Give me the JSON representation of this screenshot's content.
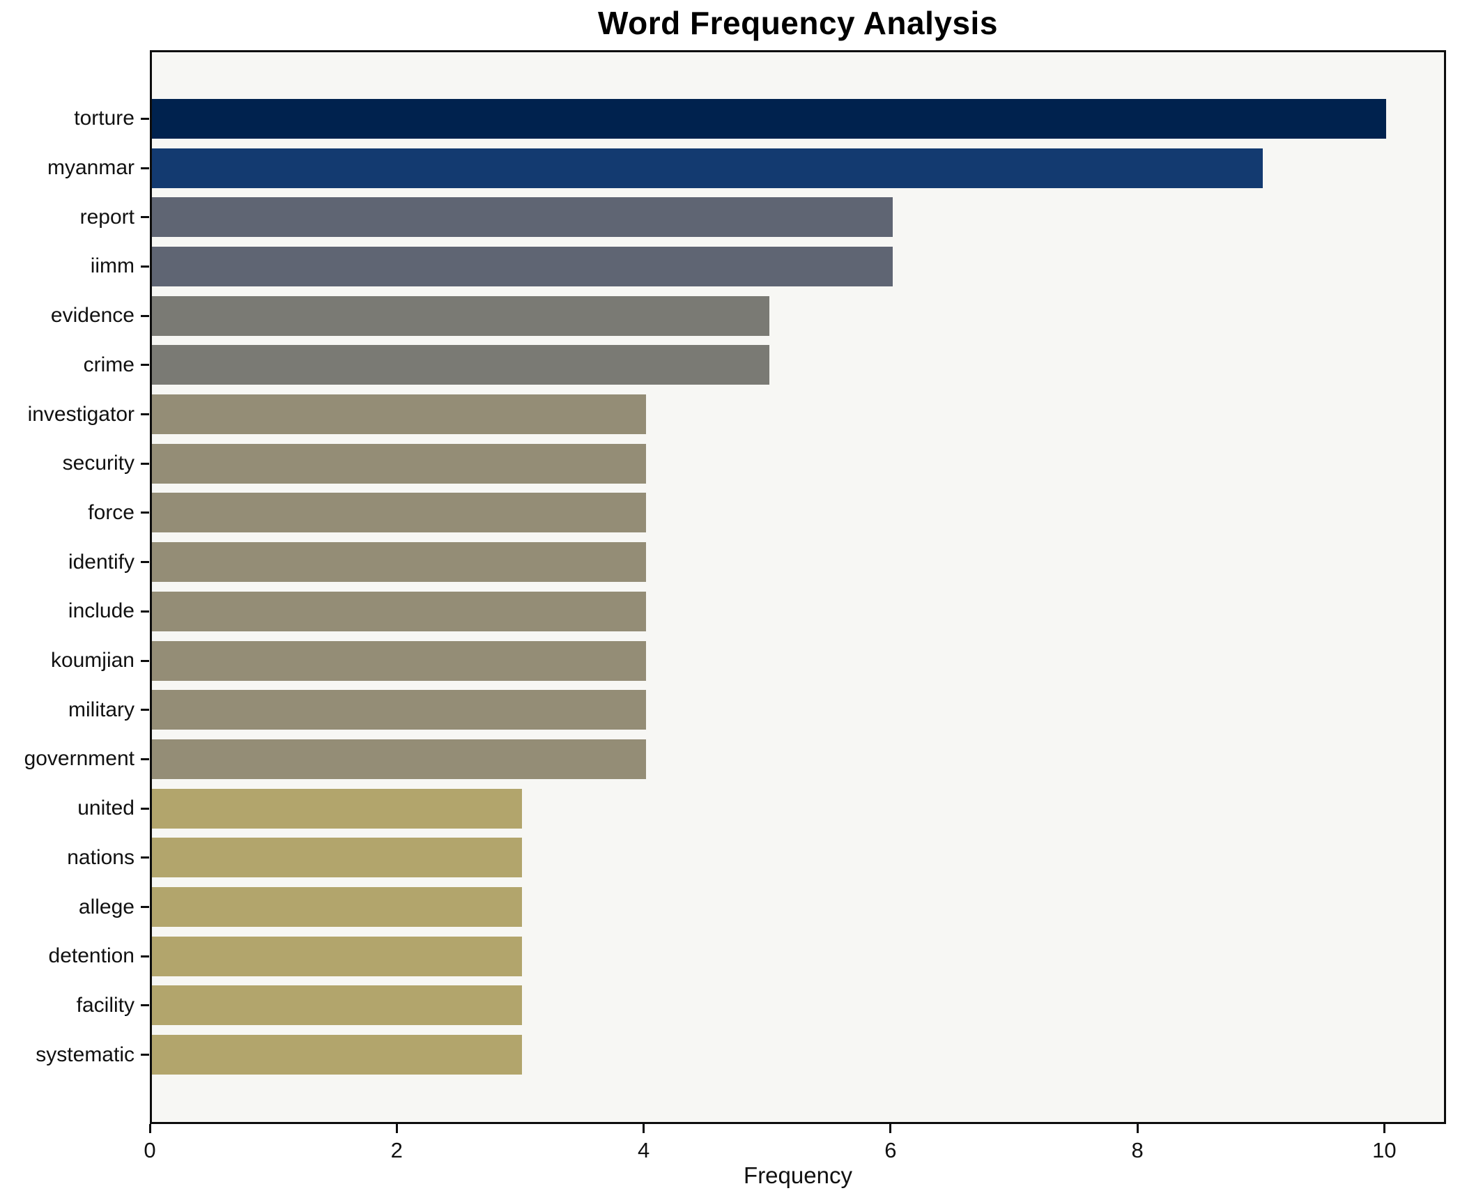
{
  "chart": {
    "title": "Word Frequency Analysis",
    "xlabel": "Frequency"
  },
  "chart_data": {
    "type": "bar",
    "orientation": "horizontal",
    "title": "Word Frequency Analysis",
    "xlabel": "Frequency",
    "ylabel": "",
    "categories": [
      "torture",
      "myanmar",
      "report",
      "iimm",
      "evidence",
      "crime",
      "investigator",
      "security",
      "force",
      "identify",
      "include",
      "koumjian",
      "military",
      "government",
      "united",
      "nations",
      "allege",
      "detention",
      "facility",
      "systematic"
    ],
    "values": [
      10,
      9,
      6,
      6,
      5,
      5,
      4,
      4,
      4,
      4,
      4,
      4,
      4,
      4,
      3,
      3,
      3,
      3,
      3,
      3
    ],
    "bar_colors": [
      "#00224e",
      "#133a70",
      "#5f6573",
      "#5f6573",
      "#7a7a74",
      "#7a7a74",
      "#948d76",
      "#948d76",
      "#948d76",
      "#948d76",
      "#948d76",
      "#948d76",
      "#948d76",
      "#948d76",
      "#b2a56c",
      "#b2a56c",
      "#b2a56c",
      "#b2a56c",
      "#b2a56c",
      "#b2a56c"
    ],
    "xlim": [
      0,
      10.5
    ],
    "xticks": [
      0,
      2,
      4,
      6,
      8,
      10
    ],
    "grid": false,
    "legend": "none",
    "plot_bg": "#f7f7f4",
    "figure_bg": "#ffffff"
  }
}
